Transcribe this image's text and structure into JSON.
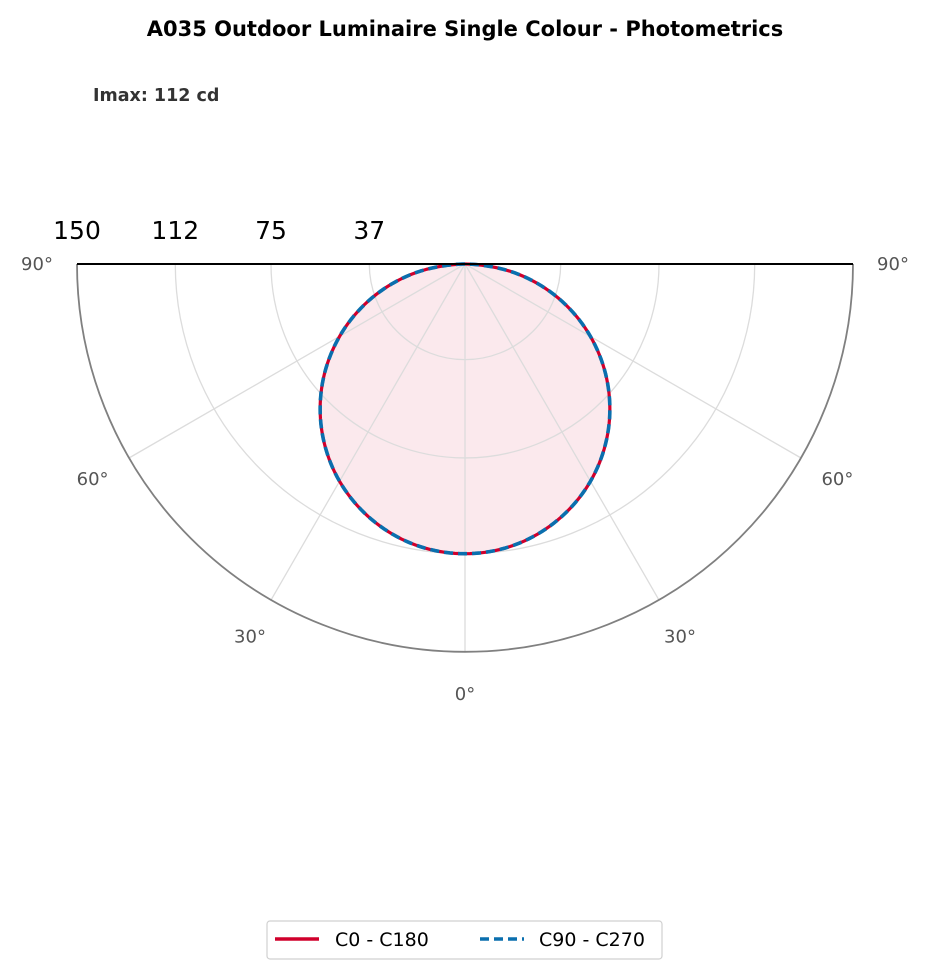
{
  "chart_data": {
    "type": "polar",
    "title": "A035 Outdoor Luminaire Single Colour - Photometrics",
    "annotation": "Imax: 112 cd",
    "radial_max": 150,
    "radial_ticks": [
      150,
      112,
      75,
      37
    ],
    "radial_tick_labels": [
      "150",
      "112",
      "75",
      "37"
    ],
    "angle_ticks": [
      0,
      30,
      60,
      90
    ],
    "angle_tick_labels": [
      "0°",
      "30°",
      "60°",
      "90°"
    ],
    "angle_range": [
      -90,
      90
    ],
    "grid": true,
    "legend_position": "bottom-center",
    "series": [
      {
        "name": "C0 - C180",
        "color": "#d0002c",
        "line_style": "solid",
        "fill": "#d0002c",
        "angles": [
          -90,
          -80,
          -70,
          -60,
          -50,
          -40,
          -30,
          -20,
          -10,
          0,
          10,
          20,
          30,
          40,
          50,
          60,
          70,
          80,
          90
        ],
        "values": [
          0,
          19.4,
          38.3,
          56,
          72,
          85.8,
          97,
          105.2,
          110.3,
          112,
          110.3,
          105.2,
          97,
          85.8,
          72,
          56,
          38.3,
          19.4,
          0
        ]
      },
      {
        "name": "C90 - C270",
        "color": "#0a6fae",
        "line_style": "dashed",
        "angles": [
          -90,
          -80,
          -70,
          -60,
          -50,
          -40,
          -30,
          -20,
          -10,
          0,
          10,
          20,
          30,
          40,
          50,
          60,
          70,
          80,
          90
        ],
        "values": [
          0,
          19.4,
          38.3,
          56,
          72,
          85.8,
          97,
          105.2,
          110.3,
          112,
          110.3,
          105.2,
          97,
          85.8,
          72,
          56,
          38.3,
          19.4,
          0
        ]
      }
    ]
  }
}
